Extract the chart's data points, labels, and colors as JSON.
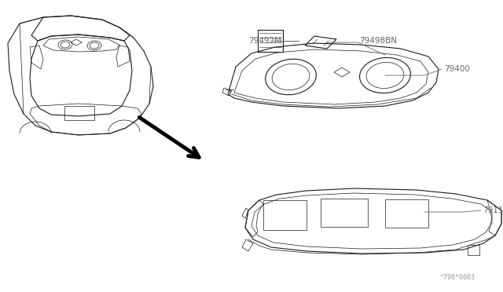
{
  "bg_color": "#ffffff",
  "line_color": "#1a1a1a",
  "label_color": "#666666",
  "fig_width": 6.4,
  "fig_height": 3.72,
  "dpi": 100,
  "watermark": "^790*0003"
}
